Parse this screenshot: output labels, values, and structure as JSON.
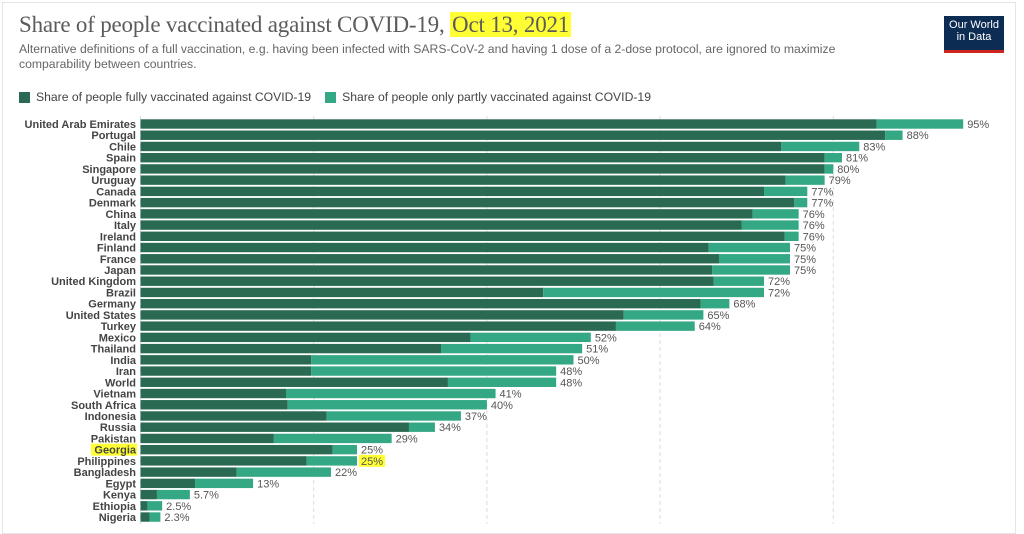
{
  "header": {
    "title": "Share of people vaccinated against COVID-19, ",
    "title_date": "Oct 13, 2021",
    "subtitle": "Alternative definitions of a full vaccination, e.g. having been infected with SARS-CoV-2 and having 1 dose of a 2-dose protocol, are ignored to maximize comparability between countries.",
    "logo": "Our World in Data"
  },
  "colors": {
    "full": "#2a6a52",
    "partial": "#34a884",
    "highlight": "#ffff33",
    "logo_bg": "#0d2c54",
    "logo_bar": "#ce261e"
  },
  "chart_data": {
    "type": "bar",
    "orientation": "horizontal",
    "stacked": true,
    "xlim": [
      0,
      100
    ],
    "grid": true,
    "legend_placement": "top-left",
    "series": [
      {
        "name": "Share of people fully vaccinated against COVID-19",
        "color": "#2a6a52"
      },
      {
        "name": "Share of people only partly vaccinated against COVID-19",
        "color": "#34a884"
      }
    ],
    "highlighted": [
      "Georgia",
      "Philippines"
    ],
    "rows": [
      {
        "country": "United Arab Emirates",
        "full": 85,
        "total": 95,
        "label": "95%"
      },
      {
        "country": "Portugal",
        "full": 86,
        "total": 88,
        "label": "88%"
      },
      {
        "country": "Chile",
        "full": 74,
        "total": 83,
        "label": "83%"
      },
      {
        "country": "Spain",
        "full": 79,
        "total": 81,
        "label": "81%"
      },
      {
        "country": "Singapore",
        "full": 79,
        "total": 80,
        "label": "80%"
      },
      {
        "country": "Uruguay",
        "full": 74.5,
        "total": 79,
        "label": "79%"
      },
      {
        "country": "Canada",
        "full": 72,
        "total": 77,
        "label": "77%"
      },
      {
        "country": "Denmark",
        "full": 75.5,
        "total": 77,
        "label": "77%"
      },
      {
        "country": "China",
        "full": 70.7,
        "total": 76,
        "label": "76%"
      },
      {
        "country": "Italy",
        "full": 69.4,
        "total": 76,
        "label": "76%"
      },
      {
        "country": "Ireland",
        "full": 74.4,
        "total": 76,
        "label": "76%"
      },
      {
        "country": "Finland",
        "full": 65.6,
        "total": 75,
        "label": "75%"
      },
      {
        "country": "France",
        "full": 66.8,
        "total": 75,
        "label": "75%"
      },
      {
        "country": "Japan",
        "full": 66,
        "total": 75,
        "label": "75%"
      },
      {
        "country": "United Kingdom",
        "full": 66.2,
        "total": 72,
        "label": "72%"
      },
      {
        "country": "Brazil",
        "full": 46.5,
        "total": 72,
        "label": "72%"
      },
      {
        "country": "Germany",
        "full": 64.7,
        "total": 68,
        "label": "68%"
      },
      {
        "country": "United States",
        "full": 55.8,
        "total": 65,
        "label": "65%"
      },
      {
        "country": "Turkey",
        "full": 54.9,
        "total": 64,
        "label": "64%"
      },
      {
        "country": "Mexico",
        "full": 38.1,
        "total": 52,
        "label": "52%"
      },
      {
        "country": "Thailand",
        "full": 34.7,
        "total": 51,
        "label": "51%"
      },
      {
        "country": "India",
        "full": 19.7,
        "total": 50,
        "label": "50%"
      },
      {
        "country": "Iran",
        "full": 19.7,
        "total": 48,
        "label": "48%"
      },
      {
        "country": "World",
        "full": 35.5,
        "total": 48,
        "label": "48%"
      },
      {
        "country": "Vietnam",
        "full": 16.8,
        "total": 41,
        "label": "41%"
      },
      {
        "country": "South Africa",
        "full": 17,
        "total": 40,
        "label": "40%"
      },
      {
        "country": "Indonesia",
        "full": 21.5,
        "total": 37,
        "label": "37%"
      },
      {
        "country": "Russia",
        "full": 31,
        "total": 34,
        "label": "34%"
      },
      {
        "country": "Pakistan",
        "full": 15.4,
        "total": 29,
        "label": "29%"
      },
      {
        "country": "Georgia",
        "full": 22.2,
        "total": 25,
        "label": "25%"
      },
      {
        "country": "Philippines",
        "full": 19.2,
        "total": 25,
        "label": "25%"
      },
      {
        "country": "Bangladesh",
        "full": 11.1,
        "total": 22,
        "label": "22%"
      },
      {
        "country": "Egypt",
        "full": 6.3,
        "total": 13,
        "label": "13%"
      },
      {
        "country": "Kenya",
        "full": 1.9,
        "total": 5.7,
        "label": "5.7%"
      },
      {
        "country": "Ethiopia",
        "full": 0.8,
        "total": 2.5,
        "label": "2.5%"
      },
      {
        "country": "Nigeria",
        "full": 1.05,
        "total": 2.3,
        "label": "2.3%"
      }
    ]
  }
}
